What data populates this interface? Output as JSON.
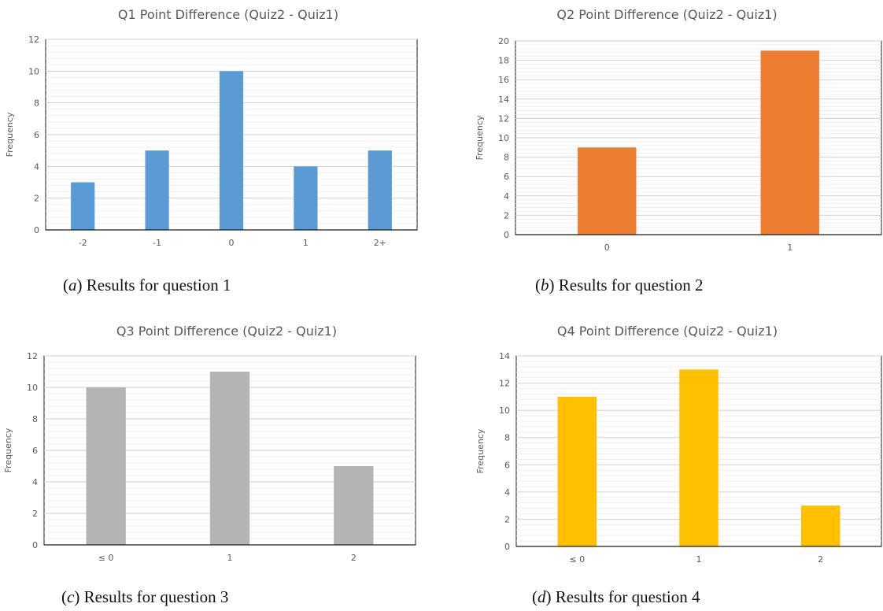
{
  "chart_data": [
    {
      "type": "bar",
      "title": "Q1 Point Difference (Quiz2 - Quiz1)",
      "ylabel": "Frequency",
      "xlabel": "",
      "categories": [
        "-2",
        "-1",
        "0",
        "1",
        "2+"
      ],
      "values": [
        3,
        5,
        10,
        4,
        5
      ],
      "ylim": [
        0,
        12
      ],
      "yticks": [
        0,
        2,
        4,
        6,
        8,
        10,
        12
      ],
      "grid": true,
      "color": "#5b9bd5",
      "caption_letter": "a",
      "caption_text": "Results for question 1"
    },
    {
      "type": "bar",
      "title": "Q2 Point Difference (Quiz2 - Quiz1)",
      "ylabel": "Frequency",
      "xlabel": "",
      "categories": [
        "0",
        "1"
      ],
      "values": [
        9,
        19
      ],
      "ylim": [
        0,
        20
      ],
      "yticks": [
        0,
        2,
        4,
        6,
        8,
        10,
        12,
        14,
        16,
        18,
        20
      ],
      "grid": true,
      "color": "#ed7d31",
      "caption_letter": "b",
      "caption_text": "Results for question 2"
    },
    {
      "type": "bar",
      "title": "Q3 Point Difference (Quiz2 - Quiz1)",
      "ylabel": "Frequency",
      "xlabel": "",
      "categories": [
        "≤ 0",
        "1",
        "2"
      ],
      "values": [
        10,
        11,
        5
      ],
      "ylim": [
        0,
        12
      ],
      "yticks": [
        0,
        2,
        4,
        6,
        8,
        10,
        12
      ],
      "grid": true,
      "color": "#b4b4b4",
      "caption_letter": "c",
      "caption_text": "Results for question 3"
    },
    {
      "type": "bar",
      "title": "Q4 Point Difference (Quiz2 - Quiz1)",
      "ylabel": "Frequency",
      "xlabel": "",
      "categories": [
        "≤ 0",
        "1",
        "2"
      ],
      "values": [
        11,
        13,
        3
      ],
      "ylim": [
        0,
        14
      ],
      "yticks": [
        0,
        2,
        4,
        6,
        8,
        10,
        12,
        14
      ],
      "grid": true,
      "color": "#ffc000",
      "caption_letter": "d",
      "caption_text": "Results for question 4"
    }
  ]
}
